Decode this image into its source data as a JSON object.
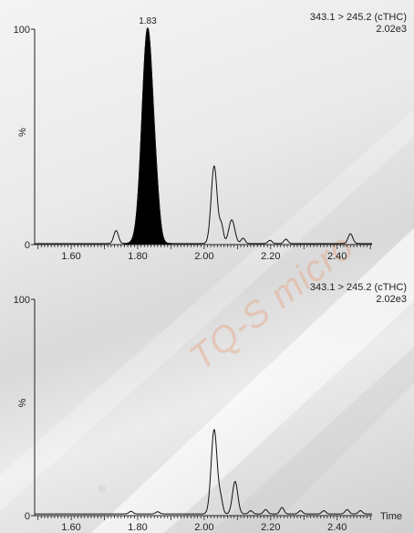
{
  "watermark": "TQ-S micro",
  "chart_data": [
    {
      "type": "line",
      "title": "343.1 > 245.2 (cTHC)",
      "subtitle": "2.02e3",
      "ylabel": "%",
      "xlabel": "",
      "xlim": [
        1.49,
        2.505
      ],
      "ylim": [
        0,
        100
      ],
      "xticks": [
        1.6,
        1.8,
        2.0,
        2.2,
        2.4
      ],
      "xtick_labels": [
        "1.60",
        "1.80",
        "2.00",
        "2.20",
        "2.40"
      ],
      "yticks": [
        0,
        100
      ],
      "ytick_labels": [
        "0",
        "100"
      ],
      "baseline": 0.5,
      "peaks": [
        {
          "x": 1.735,
          "y": 6,
          "w": 0.007
        },
        {
          "x": 1.83,
          "y": 100,
          "w": 0.017,
          "filled": true,
          "label": "1.83"
        },
        {
          "x": 1.858,
          "y": 8,
          "w": 0.009
        },
        {
          "x": 2.03,
          "y": 36,
          "w": 0.009
        },
        {
          "x": 2.052,
          "y": 8,
          "w": 0.006
        },
        {
          "x": 2.083,
          "y": 11,
          "w": 0.009
        },
        {
          "x": 2.117,
          "y": 2.5,
          "w": 0.006
        },
        {
          "x": 2.198,
          "y": 1.5,
          "w": 0.006
        },
        {
          "x": 2.246,
          "y": 2,
          "w": 0.006
        },
        {
          "x": 2.44,
          "y": 4.5,
          "w": 0.007
        }
      ]
    },
    {
      "type": "line",
      "title": "343.1 > 245.2 (cTHC)",
      "subtitle": "2.02e3",
      "ylabel": "%",
      "xlabel": "Time",
      "xlim": [
        1.49,
        2.505
      ],
      "ylim": [
        0,
        100
      ],
      "xticks": [
        1.6,
        1.8,
        2.0,
        2.2,
        2.4
      ],
      "xtick_labels": [
        "1.60",
        "1.80",
        "2.00",
        "2.20",
        "2.40"
      ],
      "yticks": [
        0,
        100
      ],
      "ytick_labels": [
        "0",
        "100"
      ],
      "baseline": 0.8,
      "peaks": [
        {
          "x": 1.78,
          "y": 1.2,
          "w": 0.006
        },
        {
          "x": 1.86,
          "y": 1,
          "w": 0.006
        },
        {
          "x": 2.03,
          "y": 39,
          "w": 0.009
        },
        {
          "x": 2.05,
          "y": 6,
          "w": 0.006
        },
        {
          "x": 2.093,
          "y": 15,
          "w": 0.008
        },
        {
          "x": 2.14,
          "y": 1.5,
          "w": 0.006
        },
        {
          "x": 2.185,
          "y": 2,
          "w": 0.006
        },
        {
          "x": 2.234,
          "y": 3,
          "w": 0.006
        },
        {
          "x": 2.29,
          "y": 1.5,
          "w": 0.006
        },
        {
          "x": 2.36,
          "y": 1.5,
          "w": 0.006
        },
        {
          "x": 2.43,
          "y": 2,
          "w": 0.006
        },
        {
          "x": 2.47,
          "y": 1.5,
          "w": 0.006
        }
      ]
    }
  ]
}
